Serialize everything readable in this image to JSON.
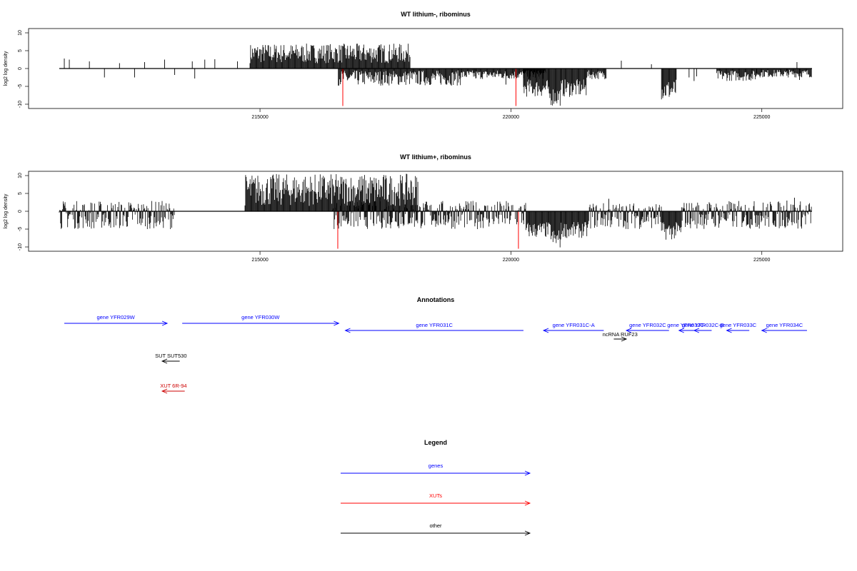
{
  "chart_data": [
    {
      "type": "bar",
      "title": "WT lithium-, ribominus",
      "ylabel": "log2 log density",
      "xlim": [
        211000,
        226000
      ],
      "ylim": [
        -11,
        11
      ],
      "yticks": [
        10,
        5,
        0,
        -5,
        -10
      ],
      "xticks": [
        215000,
        220000,
        225000
      ],
      "xticklabels": [
        "215000",
        "220000",
        "225000"
      ],
      "baseline": 0,
      "colors": {
        "bars": "#000000",
        "markers": "#ff0000"
      },
      "markers": [
        {
          "x": 216650,
          "y": -10.5
        },
        {
          "x": 220100,
          "y": -10.5
        }
      ],
      "bars": [
        {
          "x": 211100,
          "y": 2.8
        },
        {
          "x": 211200,
          "y": 2.5
        },
        {
          "x": 211600,
          "y": 2.0
        },
        {
          "x": 211900,
          "y": -2.5
        },
        {
          "x": 212200,
          "y": 1.5
        },
        {
          "x": 212500,
          "y": -2.5
        },
        {
          "x": 212700,
          "y": 1.8
        },
        {
          "x": 213100,
          "y": 2.5
        },
        {
          "x": 213300,
          "y": -1.8
        },
        {
          "x": 213650,
          "y": 2.0
        },
        {
          "x": 213700,
          "y": -2.8
        },
        {
          "x": 213900,
          "y": 2.5
        },
        {
          "x": 214100,
          "y": 2.6
        },
        {
          "x": 214550,
          "y": 2.0
        },
        {
          "x": 219300,
          "y": -2.8
        },
        {
          "x": 219900,
          "y": -4.5
        },
        {
          "x": 222200,
          "y": 2.2
        },
        {
          "x": 222800,
          "y": 1.2
        },
        {
          "x": 223550,
          "y": -2.5
        },
        {
          "x": 223650,
          "y": -3.5
        },
        {
          "x": 223700,
          "y": -2.2
        },
        {
          "x": 225500,
          "y": -2.0
        },
        {
          "x": 225700,
          "y": 1.8
        },
        {
          "x": 225750,
          "y": -3.2
        }
      ],
      "regions": [
        {
          "from": 214800,
          "to": 218000,
          "min": 1.5,
          "max": 7.0
        },
        {
          "from": 216560,
          "to": 219000,
          "min": -4.8,
          "max": -0.5
        },
        {
          "from": 219000,
          "to": 220700,
          "min": -3.0,
          "max": -0.5
        },
        {
          "from": 220250,
          "to": 220750,
          "min": -8.0,
          "max": -3.0
        },
        {
          "from": 220750,
          "to": 221000,
          "min": -10.5,
          "max": -5.0
        },
        {
          "from": 221000,
          "to": 221500,
          "min": -8.0,
          "max": -3.0
        },
        {
          "from": 221500,
          "to": 221900,
          "min": -3.0,
          "max": -0.5
        },
        {
          "from": 223000,
          "to": 223300,
          "min": -9.0,
          "max": -3.0
        },
        {
          "from": 224100,
          "to": 224900,
          "min": -3.5,
          "max": -0.5
        },
        {
          "from": 224900,
          "to": 226000,
          "min": -2.5,
          "max": -0.3
        }
      ]
    },
    {
      "type": "bar",
      "title": "WT lithium+, ribominus",
      "ylabel": "log2 log density",
      "xlim": [
        211000,
        226000
      ],
      "ylim": [
        -11,
        11
      ],
      "yticks": [
        10,
        5,
        0,
        -5,
        -10
      ],
      "xticks": [
        215000,
        220000,
        225000
      ],
      "xticklabels": [
        "215000",
        "220000",
        "225000"
      ],
      "baseline": 0,
      "colors": {
        "bars": "#000000",
        "markers": "#ff0000"
      },
      "markers": [
        {
          "x": 216550,
          "y": -10.5
        },
        {
          "x": 220150,
          "y": -10.5
        }
      ],
      "bars": [
        {
          "x": 221950,
          "y": 3.5
        },
        {
          "x": 222300,
          "y": 1.5
        },
        {
          "x": 225500,
          "y": 3.0
        },
        {
          "x": 225650,
          "y": 3.8
        }
      ],
      "regions": [
        {
          "from": 211000,
          "to": 213300,
          "min": -5.0,
          "max": 3.0
        },
        {
          "from": 214700,
          "to": 218150,
          "min": 1.5,
          "max": 10.5
        },
        {
          "from": 216450,
          "to": 220300,
          "min": -5.0,
          "max": 3.0
        },
        {
          "from": 220300,
          "to": 220800,
          "min": -7.5,
          "max": -3.0
        },
        {
          "from": 220800,
          "to": 221000,
          "min": -10.5,
          "max": -5.0
        },
        {
          "from": 221000,
          "to": 221550,
          "min": -7.5,
          "max": -3.0
        },
        {
          "from": 221550,
          "to": 223000,
          "min": -5.0,
          "max": 2.5
        },
        {
          "from": 223000,
          "to": 223400,
          "min": -8.0,
          "max": -3.0
        },
        {
          "from": 223400,
          "to": 226000,
          "min": -5.0,
          "max": 3.0
        }
      ]
    }
  ],
  "annotations": {
    "title": "Annotations",
    "items": [
      {
        "label": "gene YFR029W",
        "x1": 211100,
        "x2": 213150,
        "row": 0,
        "dir": "right",
        "color": "#0000ff"
      },
      {
        "label": "gene YFR030W",
        "x1": 213450,
        "x2": 216570,
        "row": 0,
        "dir": "right",
        "color": "#0000ff"
      },
      {
        "label": "gene YFR031C",
        "x1": 216700,
        "x2": 220250,
        "row": 1,
        "dir": "left",
        "color": "#0000ff"
      },
      {
        "label": "gene YFR031C-A",
        "x1": 220650,
        "x2": 221850,
        "row": 1,
        "dir": "left",
        "color": "#0000ff"
      },
      {
        "label": "ncRNA RUF23",
        "x1": 222050,
        "x2": 222300,
        "row": 2,
        "dir": "right",
        "color": "#000000"
      },
      {
        "label": "gene YFR032C",
        "x1": 222300,
        "x2": 223150,
        "row": 1,
        "dir": "left",
        "color": "#0000ff"
      },
      {
        "label": "gene YFR032C-",
        "x1": 223350,
        "x2": 223650,
        "row": 1,
        "dir": "left",
        "color": "#0000ff"
      },
      {
        "label": "gene YFR032C-B",
        "x1": 223650,
        "x2": 224000,
        "row": 1,
        "dir": "left",
        "color": "#0000ff"
      },
      {
        "label": "gene YFR033C",
        "x1": 224300,
        "x2": 224750,
        "row": 1,
        "dir": "left",
        "color": "#0000ff"
      },
      {
        "label": "gene YFR034C",
        "x1": 225000,
        "x2": 225900,
        "row": 1,
        "dir": "left",
        "color": "#0000ff"
      },
      {
        "label": "SUT SUT530",
        "x1": 213050,
        "x2": 213400,
        "row": 3,
        "dir": "left",
        "color": "#000000"
      },
      {
        "label": "XUT 6R-94",
        "x1": 213050,
        "x2": 213500,
        "row": 4,
        "dir": "left",
        "color": "#cc0000"
      }
    ]
  },
  "legend": {
    "title": "Legend",
    "items": [
      {
        "label": "genes",
        "color": "#0000ff"
      },
      {
        "label": "XUTs",
        "color": "#ff0000"
      },
      {
        "label": "other",
        "color": "#000000"
      }
    ]
  }
}
